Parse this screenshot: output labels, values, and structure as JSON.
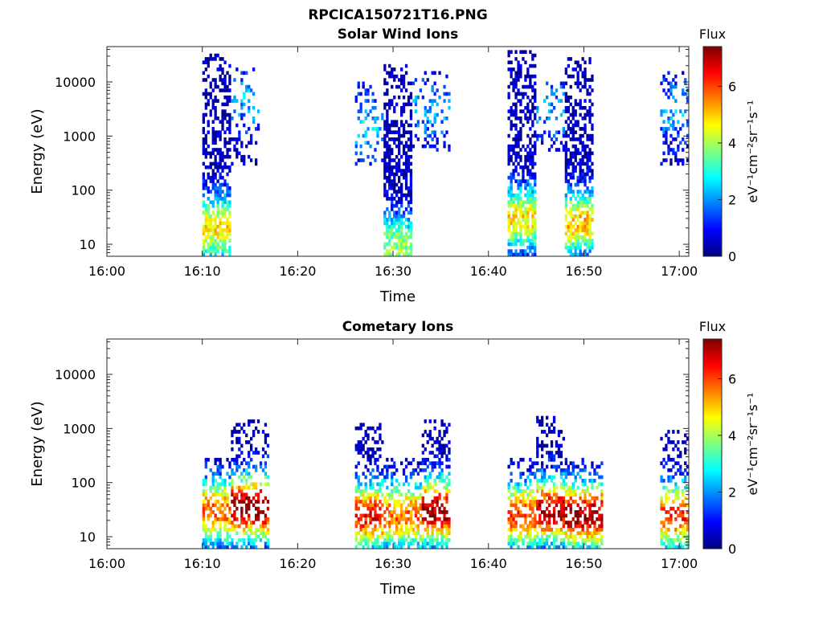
{
  "figure_title": "RPCICA150721T16.PNG",
  "colors": {
    "axis": "#262626",
    "jet_map": [
      "#00007f",
      "#0000ff",
      "#007fff",
      "#00ffff",
      "#7fff7f",
      "#ffff00",
      "#ff7f00",
      "#ff0000",
      "#7f0000"
    ]
  },
  "chart_data": [
    {
      "type": "heatmap",
      "title": "Solar Wind Ions",
      "xlabel": "Time",
      "ylabel": "Energy (eV)",
      "yscale": "log",
      "xlim": [
        "16:00",
        "17:01"
      ],
      "ylim": [
        6,
        45000
      ],
      "x_ticks": [
        "16:00",
        "16:10",
        "16:20",
        "16:30",
        "16:40",
        "16:50",
        "17:00"
      ],
      "y_ticks": [
        10,
        100,
        1000,
        10000
      ],
      "y_tick_labels": [
        "10",
        "100",
        "1000",
        "10000"
      ],
      "colorbar": {
        "label": "Flux",
        "units": "eV⁻¹cm⁻²sr⁻¹s⁻¹",
        "range": [
          0,
          7.4
        ],
        "ticks": [
          0,
          2,
          4,
          6
        ],
        "tick_labels": [
          "0",
          "2",
          "4",
          "6"
        ]
      },
      "bursts": [
        {
          "start": "16:10",
          "end": "16:13",
          "emin": 6,
          "emax": 35000,
          "peak_energy": 20,
          "peak_flux": 4.5,
          "density": 0.75
        },
        {
          "start": "16:13",
          "end": "16:16",
          "emin": 300,
          "emax": 18000,
          "peak_energy": 5000,
          "peak_flux": 2.0,
          "density": 0.3
        },
        {
          "start": "16:26",
          "end": "16:29",
          "emin": 300,
          "emax": 10000,
          "peak_energy": 1500,
          "peak_flux": 2.2,
          "density": 0.3
        },
        {
          "start": "16:29",
          "end": "16:32",
          "emin": 6,
          "emax": 22000,
          "peak_energy": 10,
          "peak_flux": 3.5,
          "density": 0.8
        },
        {
          "start": "16:32",
          "end": "16:36",
          "emin": 500,
          "emax": 15000,
          "peak_energy": 3000,
          "peak_flux": 1.8,
          "density": 0.35
        },
        {
          "start": "16:42",
          "end": "16:45",
          "emin": 6,
          "emax": 38000,
          "peak_energy": 30,
          "peak_flux": 4.5,
          "density": 0.8
        },
        {
          "start": "16:45",
          "end": "16:48",
          "emin": 500,
          "emax": 10000,
          "peak_energy": 3000,
          "peak_flux": 1.8,
          "density": 0.3
        },
        {
          "start": "16:48",
          "end": "16:51",
          "emin": 6,
          "emax": 30000,
          "peak_energy": 25,
          "peak_flux": 4.8,
          "density": 0.8
        },
        {
          "start": "16:58",
          "end": "17:01",
          "emin": 300,
          "emax": 18000,
          "peak_energy": 3000,
          "peak_flux": 1.8,
          "density": 0.35
        }
      ]
    },
    {
      "type": "heatmap",
      "title": "Cometary Ions",
      "xlabel": "Time",
      "ylabel": "Energy (eV)",
      "yscale": "log",
      "xlim": [
        "16:00",
        "17:01"
      ],
      "ylim": [
        6,
        45000
      ],
      "x_ticks": [
        "16:00",
        "16:10",
        "16:20",
        "16:30",
        "16:40",
        "16:50",
        "17:00"
      ],
      "y_ticks": [
        10,
        100,
        1000,
        10000
      ],
      "y_tick_labels": [
        "10",
        "100",
        "1000",
        "10000"
      ],
      "colorbar": {
        "label": "Flux",
        "units": "eV⁻¹cm⁻²sr⁻¹s⁻¹",
        "range": [
          0,
          7.4
        ],
        "ticks": [
          0,
          2,
          4,
          6
        ],
        "tick_labels": [
          "0",
          "2",
          "4",
          "6"
        ]
      },
      "bursts": [
        {
          "start": "16:10",
          "end": "16:13",
          "emin": 6,
          "emax": 300,
          "peak_energy": 30,
          "peak_flux": 5.5,
          "density": 0.7
        },
        {
          "start": "16:13",
          "end": "16:17",
          "emin": 6,
          "emax": 1500,
          "peak_energy": 35,
          "peak_flux": 7.2,
          "density": 0.6
        },
        {
          "start": "16:26",
          "end": "16:29",
          "emin": 6,
          "emax": 1300,
          "peak_energy": 25,
          "peak_flux": 6.2,
          "density": 0.7
        },
        {
          "start": "16:29",
          "end": "16:33",
          "emin": 6,
          "emax": 300,
          "peak_energy": 25,
          "peak_flux": 5.5,
          "density": 0.7
        },
        {
          "start": "16:33",
          "end": "16:36",
          "emin": 6,
          "emax": 1500,
          "peak_energy": 30,
          "peak_flux": 7.0,
          "density": 0.7
        },
        {
          "start": "16:42",
          "end": "16:45",
          "emin": 6,
          "emax": 300,
          "peak_energy": 25,
          "peak_flux": 5.8,
          "density": 0.7
        },
        {
          "start": "16:45",
          "end": "16:48",
          "emin": 6,
          "emax": 1800,
          "peak_energy": 30,
          "peak_flux": 6.8,
          "density": 0.65
        },
        {
          "start": "16:48",
          "end": "16:52",
          "emin": 6,
          "emax": 300,
          "peak_energy": 25,
          "peak_flux": 7.0,
          "density": 0.7
        },
        {
          "start": "16:58",
          "end": "17:01",
          "emin": 6,
          "emax": 1000,
          "peak_energy": 25,
          "peak_flux": 6.0,
          "density": 0.6
        }
      ]
    }
  ]
}
